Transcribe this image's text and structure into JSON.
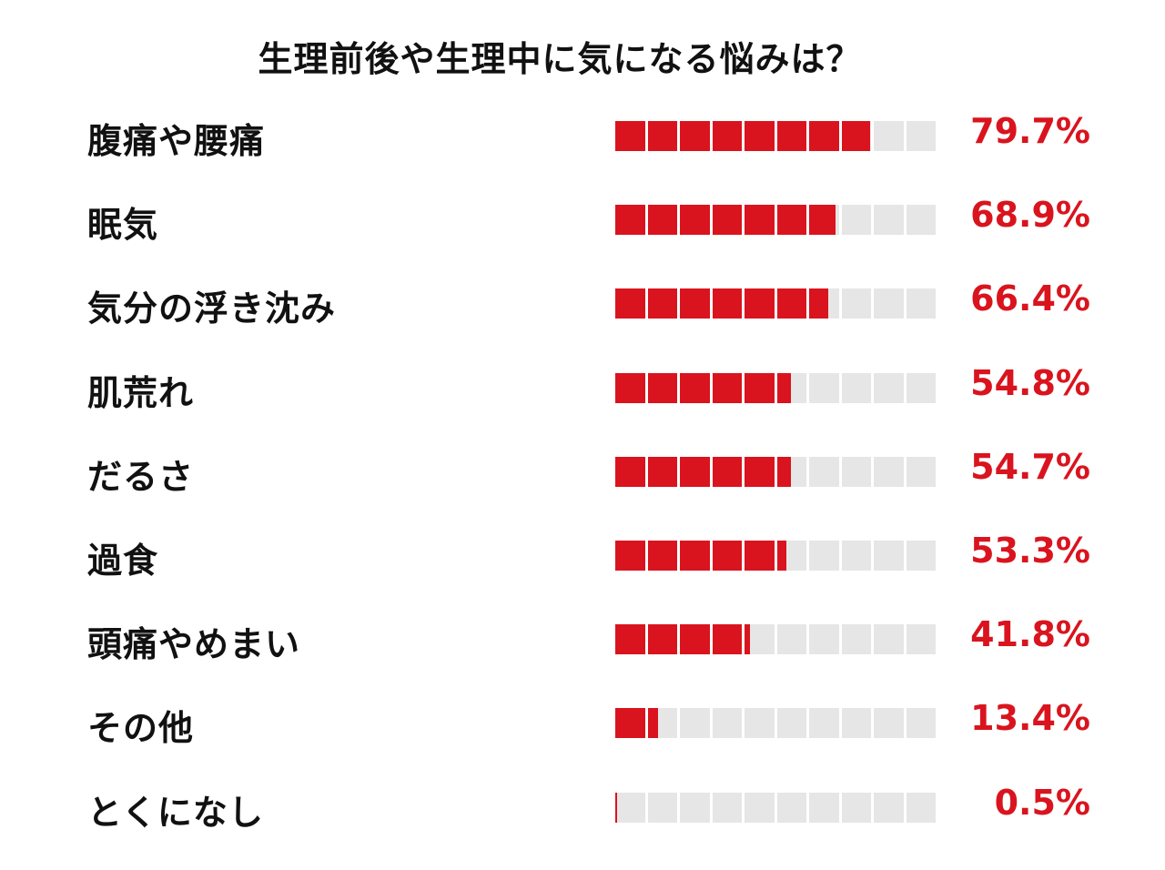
{
  "chart_data": {
    "type": "bar",
    "title": "生理前後や生理中に気になる悩みは？",
    "categories": [
      "腹痛や腰痛",
      "眠気",
      "気分の浮き沈み",
      "肌荒れ",
      "だるさ",
      "過食",
      "頭痛やめまい",
      "その他",
      "とくになし"
    ],
    "values": [
      79.7,
      68.9,
      66.4,
      54.8,
      54.7,
      53.3,
      41.8,
      13.4,
      0.5
    ],
    "value_labels": [
      "79.7%",
      "68.9%",
      "66.4%",
      "54.8%",
      "54.7%",
      "53.3%",
      "41.8%",
      "13.4%",
      "0.5%"
    ],
    "xlim": [
      0,
      100
    ],
    "segments": 10,
    "grid": false,
    "legend": "none",
    "colors": {
      "filled": "#d9141e",
      "empty": "#e6e6e6",
      "value_text": "#d9141e",
      "label_text": "#111111"
    }
  }
}
